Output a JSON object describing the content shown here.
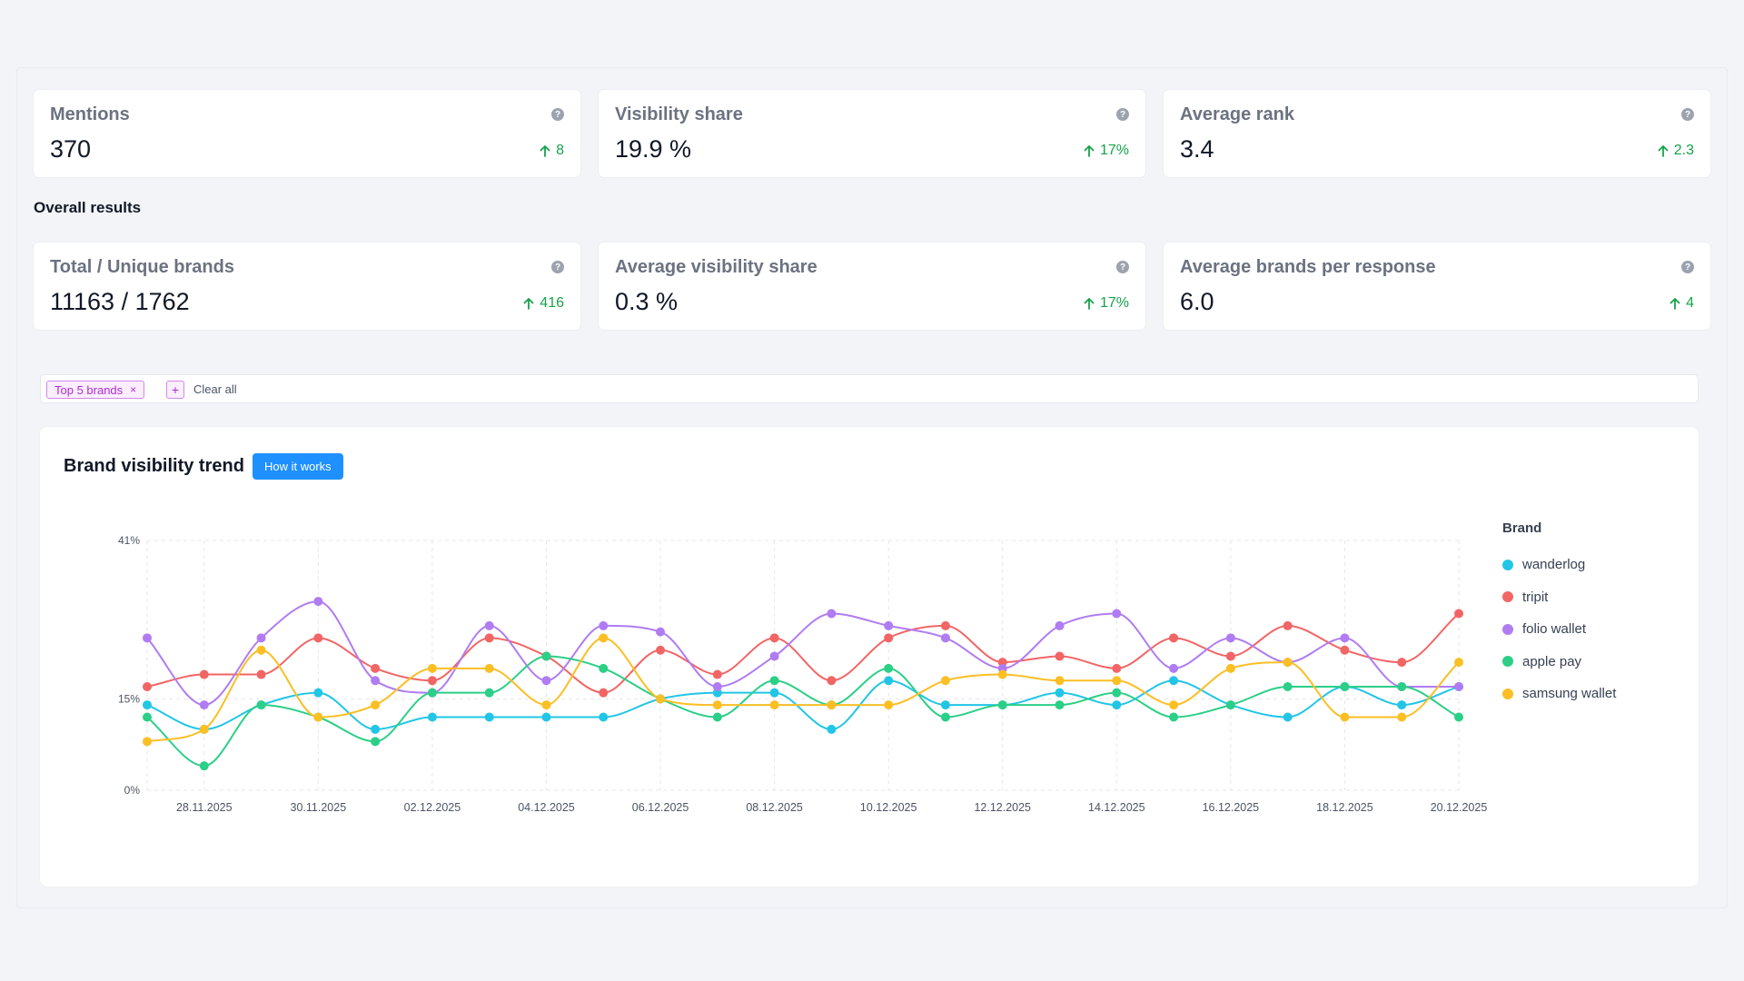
{
  "kpi_row1": [
    {
      "label": "Mentions",
      "value": "370",
      "delta": "8"
    },
    {
      "label": "Visibility share",
      "value": "19.9 %",
      "delta": "17%"
    },
    {
      "label": "Average rank",
      "value": "3.4",
      "delta": "2.3"
    }
  ],
  "section_title": "Overall results",
  "kpi_row2": [
    {
      "label": "Total / Unique brands",
      "value": "11163 / 1762",
      "delta": "416"
    },
    {
      "label": "Average visibility share",
      "value": "0.3 %",
      "delta": "17%"
    },
    {
      "label": "Average brands per response",
      "value": "6.0",
      "delta": "4"
    }
  ],
  "help_glyph": "?",
  "filters": {
    "chip_label": "Top 5 brands",
    "chip_remove": "×",
    "add": "+",
    "clear_label": "Clear all"
  },
  "chart_header": {
    "title": "Brand visibility trend",
    "button": "How it works"
  },
  "colors": {
    "accent": "#1e90ff",
    "positive": "#16a34a",
    "chip": "#b12ad6"
  },
  "chart_data": {
    "type": "line",
    "title": "Brand visibility trend",
    "legend_title": "Brand",
    "legend_position": "right",
    "y_ticks": [
      "0%",
      "15%",
      "41%"
    ],
    "ylim": [
      0,
      41
    ],
    "x_tick_labels": [
      "28.11.2025",
      "30.11.2025",
      "02.12.2025",
      "04.12.2025",
      "06.12.2025",
      "08.12.2025",
      "10.12.2025",
      "12.12.2025",
      "14.12.2025",
      "16.12.2025",
      "18.12.2025",
      "20.12.2025"
    ],
    "x": [
      "27.11.2025",
      "28.11.2025",
      "29.11.2025",
      "30.11.2025",
      "01.12.2025",
      "02.12.2025",
      "03.12.2025",
      "04.12.2025",
      "05.12.2025",
      "06.12.2025",
      "07.12.2025",
      "08.12.2025",
      "09.12.2025",
      "10.12.2025",
      "11.12.2025",
      "12.12.2025",
      "13.12.2025",
      "14.12.2025",
      "15.12.2025",
      "16.12.2025",
      "17.12.2025",
      "18.12.2025",
      "19.12.2025",
      "20.12.2025"
    ],
    "grid": true,
    "series": [
      {
        "name": "wanderlog",
        "color": "#22c5e6",
        "values": [
          14,
          10,
          14,
          16,
          10,
          12,
          12,
          12,
          12,
          15,
          16,
          16,
          10,
          18,
          14,
          14,
          16,
          14,
          18,
          14,
          12,
          17,
          14,
          17
        ]
      },
      {
        "name": "tripit",
        "color": "#f26565",
        "values": [
          17,
          19,
          19,
          25,
          20,
          18,
          25,
          22,
          16,
          23,
          19,
          25,
          18,
          25,
          27,
          21,
          22,
          20,
          25,
          22,
          27,
          23,
          21,
          29
        ]
      },
      {
        "name": "folio wallet",
        "color": "#b07cf2",
        "values": [
          25,
          14,
          25,
          31,
          18,
          16,
          27,
          18,
          27,
          26,
          17,
          22,
          29,
          27,
          25,
          20,
          27,
          29,
          20,
          25,
          21,
          25,
          17,
          17
        ]
      },
      {
        "name": "apple pay",
        "color": "#2bcf87",
        "values": [
          12,
          4,
          14,
          12,
          8,
          16,
          16,
          22,
          20,
          15,
          12,
          18,
          14,
          20,
          12,
          14,
          14,
          16,
          12,
          14,
          17,
          17,
          17,
          12
        ]
      },
      {
        "name": "samsung wallet",
        "color": "#fbbf24",
        "values": [
          8,
          10,
          23,
          12,
          14,
          20,
          20,
          14,
          25,
          15,
          14,
          14,
          14,
          14,
          18,
          19,
          18,
          18,
          14,
          20,
          21,
          12,
          12,
          21
        ]
      }
    ]
  }
}
